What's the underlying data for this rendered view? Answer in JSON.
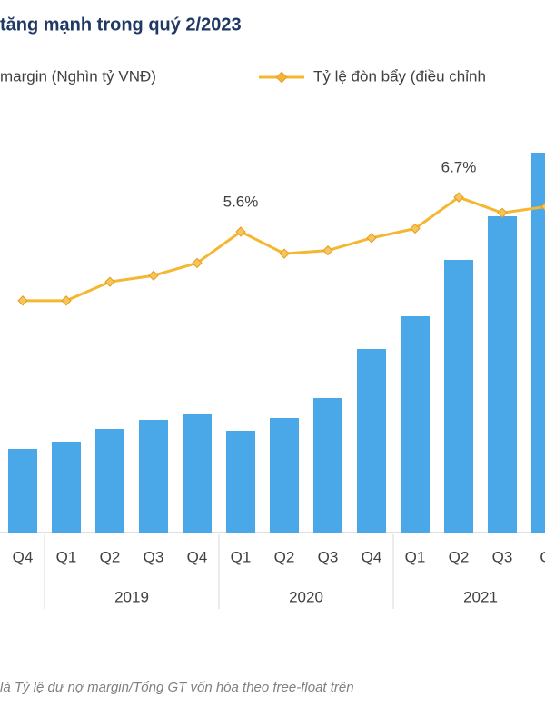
{
  "chart_data": {
    "type": "bar_line",
    "title": "tăng mạnh trong quý 2/2023",
    "categories": [
      "Q4",
      "Q1",
      "Q2",
      "Q3",
      "Q4",
      "Q1",
      "Q2",
      "Q3",
      "Q4",
      "Q1",
      "Q2",
      "Q3",
      "Q"
    ],
    "groups": [
      "2019",
      "2020",
      "2021"
    ],
    "series": [
      {
        "name": "margin (Nghìn tỷ VNĐ)",
        "type": "bar",
        "color": "#4aa8e8",
        "values": [
          46,
          50,
          57,
          62,
          65,
          56,
          63,
          74,
          101,
          119,
          150,
          174,
          209
        ]
      },
      {
        "name": "Tỷ lệ đòn bẩy (điều chỉnh",
        "type": "line",
        "axis": "y2",
        "color": "#f5b731",
        "values": [
          3.4,
          3.4,
          4.0,
          4.2,
          4.6,
          5.6,
          4.9,
          5.0,
          5.4,
          5.7,
          6.7,
          6.2,
          6.4
        ],
        "value_labels": [
          null,
          null,
          null,
          null,
          null,
          "5.6%",
          null,
          null,
          null,
          null,
          "6.7%",
          null,
          null
        ]
      }
    ],
    "ylim": [
      0,
      250
    ],
    "y2lim": [
      -4,
      10.5
    ],
    "footnote": "là Tỷ lệ dư nợ margin/Tổng GT vốn hóa theo free-float trên"
  }
}
